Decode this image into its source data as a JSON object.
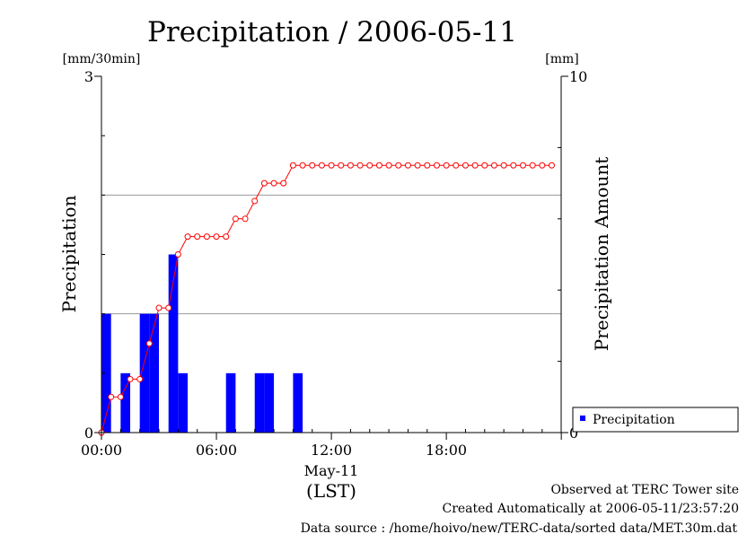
{
  "chart_data": {
    "type": "bar",
    "title": "Precipitation / 2006-05-11",
    "ylabel_left": "Precipitation",
    "ylabel_right": "Precipitation Amount",
    "left_unit": "[mm/30min]",
    "right_unit": "[mm]",
    "ylim_left": [
      0,
      3
    ],
    "ylim_right": [
      0,
      10
    ],
    "y_ticks_left": [
      "0",
      "3"
    ],
    "y_ticks_right": [
      "0",
      "10"
    ],
    "x_ticks": [
      "00:00",
      "06:00",
      "12:00",
      "18:00"
    ],
    "xlabel_date": "May-11",
    "xlabel_unit": "(LST)",
    "grid": "horizontal",
    "legend_position": "bottom-right",
    "bar_color": "#0000ff",
    "line_color": "#ff0000",
    "x": [
      "00:00",
      "00:30",
      "01:00",
      "01:30",
      "02:00",
      "02:30",
      "03:00",
      "03:30",
      "04:00",
      "04:30",
      "05:00",
      "05:30",
      "06:00",
      "06:30",
      "07:00",
      "07:30",
      "08:00",
      "08:30",
      "09:00",
      "09:30",
      "10:00",
      "10:30",
      "11:00",
      "11:30",
      "12:00",
      "12:30",
      "13:00",
      "13:30",
      "14:00",
      "14:30",
      "15:00",
      "15:30",
      "16:00",
      "16:30",
      "17:00",
      "17:30",
      "18:00",
      "18:30",
      "19:00",
      "19:30",
      "20:00",
      "20:30",
      "21:00",
      "21:30",
      "22:00",
      "22:30",
      "23:00",
      "23:30"
    ],
    "series": [
      {
        "name": "Precipitation",
        "type": "bar",
        "axis": "left",
        "values": [
          1.0,
          0,
          0.5,
          0,
          1.0,
          1.0,
          0,
          1.5,
          0.5,
          0,
          0,
          0,
          0,
          0.5,
          0,
          0,
          0.5,
          0.5,
          0,
          0,
          0.5,
          0,
          0,
          0,
          0,
          0,
          0,
          0,
          0,
          0,
          0,
          0,
          0,
          0,
          0,
          0,
          0,
          0,
          0,
          0,
          0,
          0,
          0,
          0,
          0,
          0,
          0,
          0
        ]
      },
      {
        "type": "line",
        "axis": "right",
        "values": [
          0,
          1.0,
          1.0,
          1.5,
          1.5,
          2.5,
          3.5,
          3.5,
          5.0,
          5.5,
          5.5,
          5.5,
          5.5,
          5.5,
          6.0,
          6.0,
          6.5,
          7.0,
          7.0,
          7.0,
          7.5,
          7.5,
          7.5,
          7.5,
          7.5,
          7.5,
          7.5,
          7.5,
          7.5,
          7.5,
          7.5,
          7.5,
          7.5,
          7.5,
          7.5,
          7.5,
          7.5,
          7.5,
          7.5,
          7.5,
          7.5,
          7.5,
          7.5,
          7.5,
          7.5,
          7.5,
          7.5,
          7.5
        ]
      }
    ]
  },
  "footer": {
    "line1": "Observed at TERC Tower site",
    "line2": "Created Automatically at 2006-05-11/23:57:20",
    "line3": "Data source : /home/hoivo/new/TERC-data/sorted  data/MET.30m.dat"
  }
}
